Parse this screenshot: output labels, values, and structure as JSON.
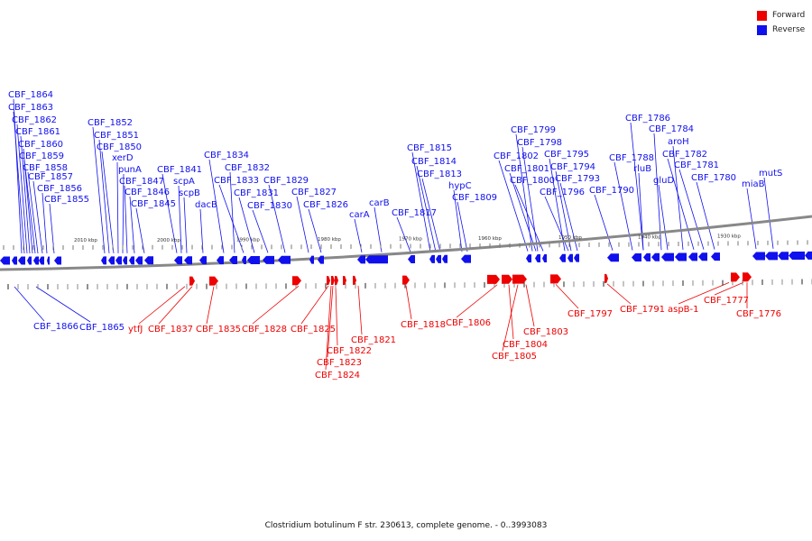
{
  "caption": "Clostridium botulinum F str. 230613, complete genome. - 0..3993083",
  "legend": [
    {
      "label": "Forward",
      "color": "#ee0000"
    },
    {
      "label": "Reverse",
      "color": "#1010ee"
    }
  ],
  "colors": {
    "forward": "#ee0000",
    "reverse": "#1010ee",
    "backbone": "#888888"
  },
  "ticks": [
    "2010 kbp",
    "2000 kbp",
    "1990 kbp",
    "1980 kbp",
    "1970 kbp",
    "1960 kbp",
    "1950 kbp",
    "1940 kbp",
    "1930 kbp"
  ],
  "reverse_labels": [
    "CBF_1864",
    "CBF_1863",
    "CBF_1862",
    "CBF_1861",
    "CBF_1860",
    "CBF_1859",
    "CBF_1858",
    "CBF_1857",
    "CBF_1856",
    "CBF_1855",
    "CBF_1852",
    "CBF_1851",
    "CBF_1850",
    "xerD",
    "punA",
    "CBF_1847",
    "CBF_1846",
    "CBF_1845",
    "CBF_1841",
    "scpA",
    "scpB",
    "dacB",
    "CBF_1834",
    "CBF_1832",
    "CBF_1833",
    "CBF_1831",
    "CBF_1830",
    "CBF_1829",
    "CBF_1827",
    "CBF_1826",
    "carA",
    "carB",
    "CBF_1817",
    "CBF_1815",
    "CBF_1814",
    "CBF_1813",
    "hypC",
    "CBF_1809",
    "CBF_1802",
    "CBF_1799",
    "CBF_1798",
    "CBF_1801",
    "CBF_1800",
    "CBF_1795",
    "CBF_1794",
    "CBF_1793",
    "CBF_1796",
    "CBF_1790",
    "CBF_1788",
    "rluB",
    "CBF_1786",
    "CBF_1784",
    "gluD",
    "aroH",
    "CBF_1782",
    "CBF_1781",
    "CBF_1780",
    "miaB",
    "mutS"
  ],
  "bottom_labels": [
    "CBF_1866",
    "CBF_1865",
    "ytfJ",
    "CBF_1837",
    "CBF_1835",
    "CBF_1828",
    "CBF_1825",
    "CBF_1822",
    "CBF_1823",
    "CBF_1824",
    "CBF_1821",
    "CBF_1818",
    "CBF_1806",
    "CBF_1804",
    "CBF_1805",
    "CBF_1803",
    "CBF_1797",
    "CBF_1791",
    "aspB-1",
    "CBF_1777",
    "CBF_1776"
  ]
}
